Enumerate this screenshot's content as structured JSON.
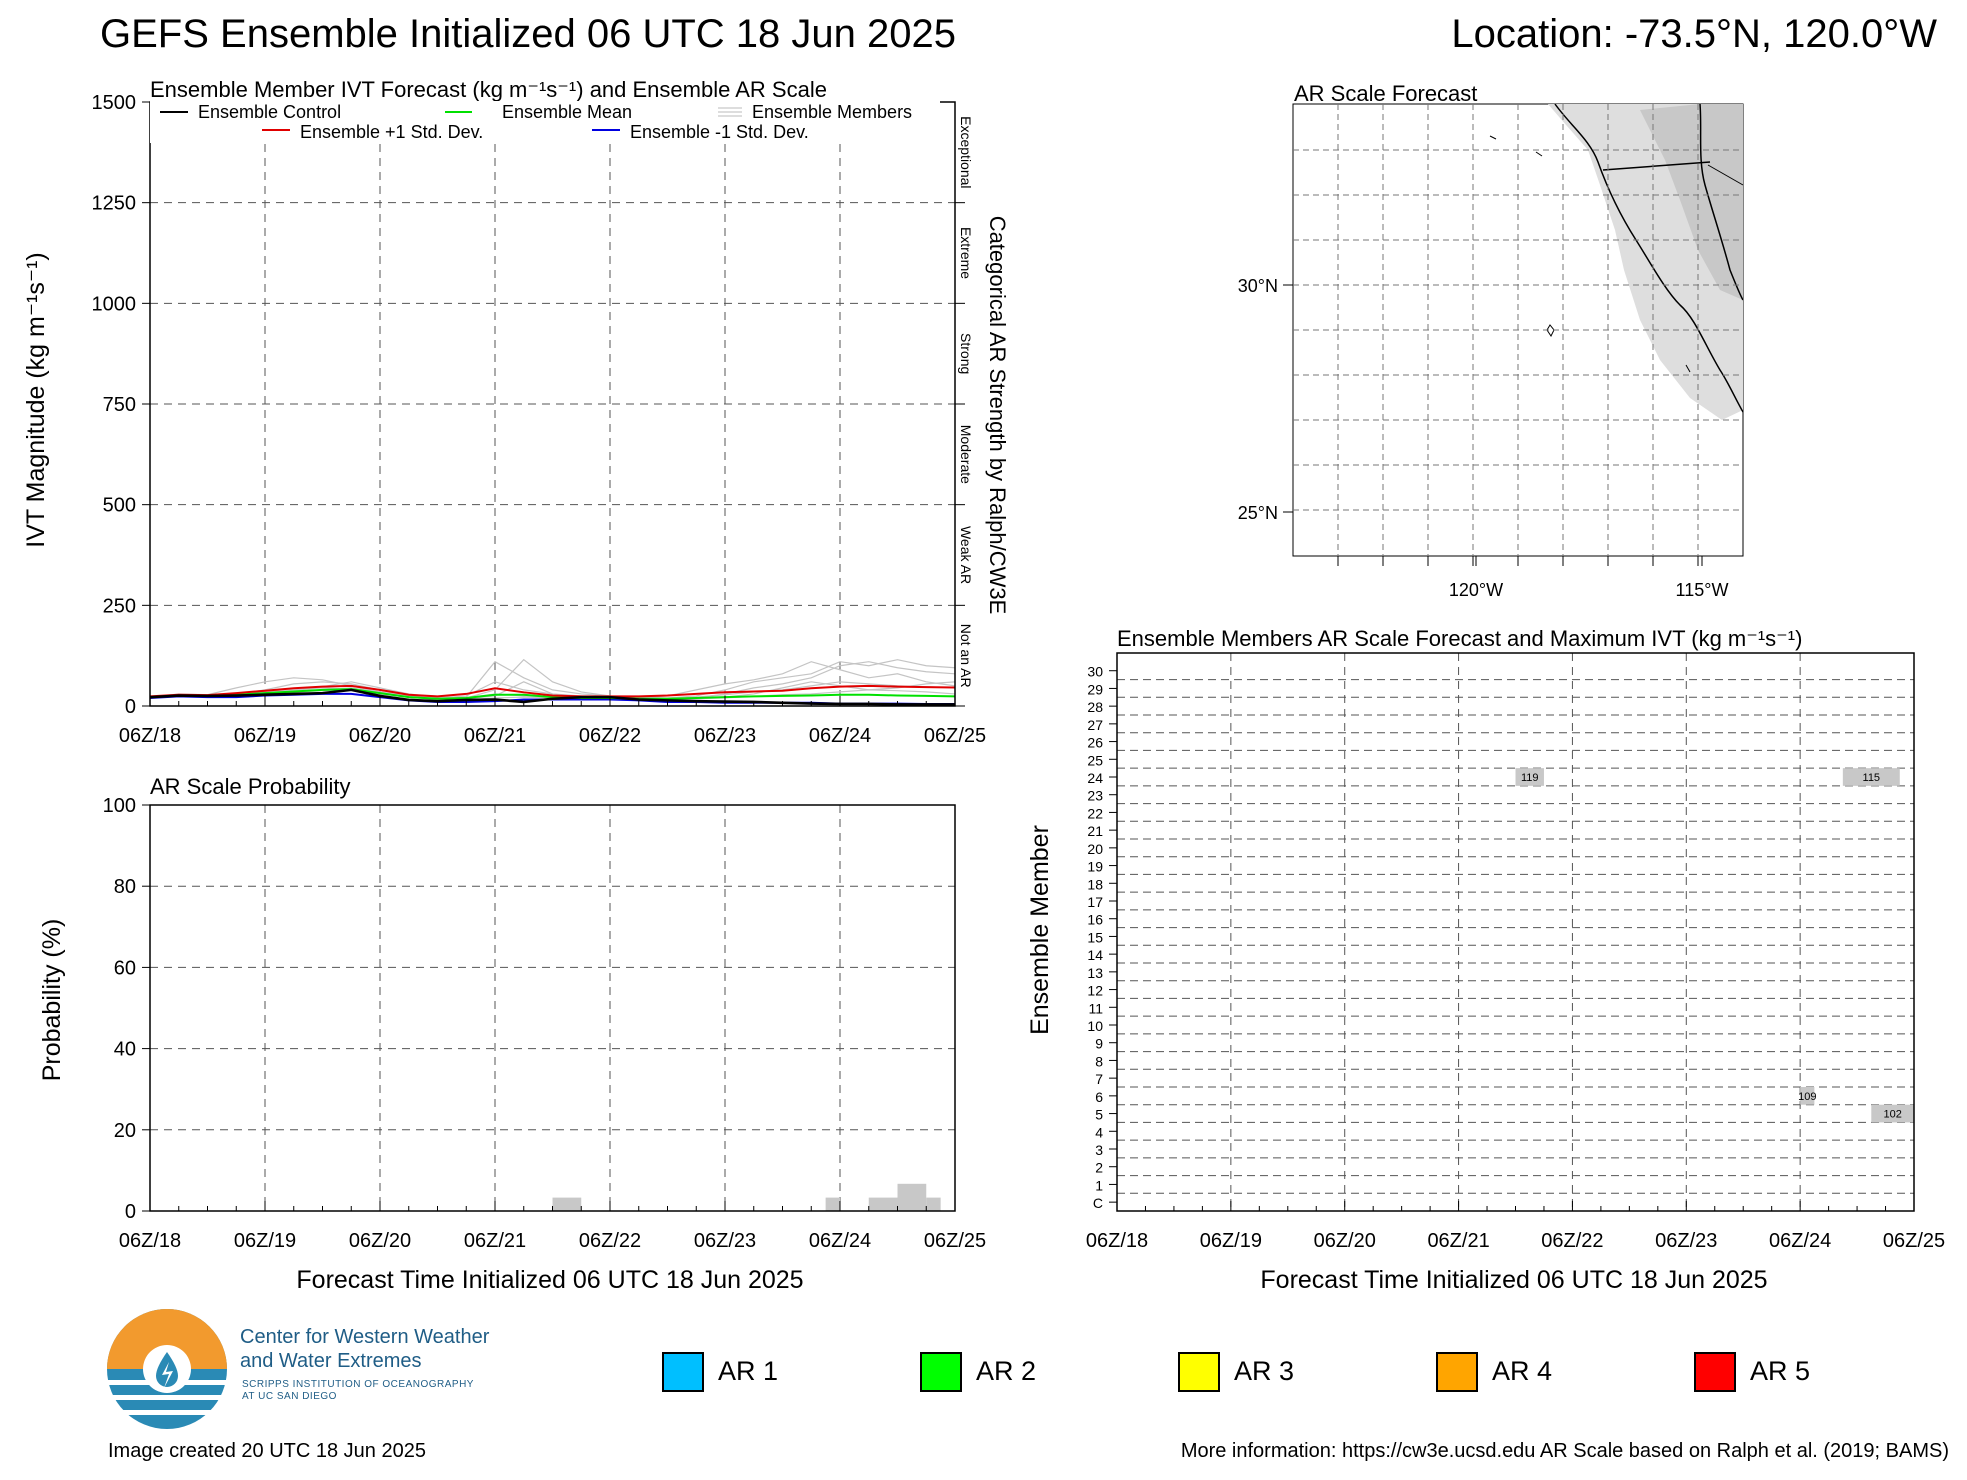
{
  "header": {
    "title": "GEFS Ensemble Initialized 06 UTC 18 Jun 2025",
    "location": "Location: -73.5°N, 120.0°W"
  },
  "time_ticks": [
    "06Z/18",
    "06Z/19",
    "06Z/20",
    "06Z/21",
    "06Z/22",
    "06Z/23",
    "06Z/24",
    "06Z/25"
  ],
  "ivt_panel": {
    "title": "Ensemble Member IVT Forecast (kg m⁻¹s⁻¹) and Ensemble AR Scale",
    "ylabel": "IVT Magnitude (kg m⁻¹s⁻¹)",
    "right_label": "Categorical AR Strength by Ralph/CW3E",
    "legend": {
      "control": "Ensemble Control",
      "mean": "Ensemble Mean",
      "members": "Ensemble Members",
      "plus_sd": "Ensemble +1 Std. Dev.",
      "minus_sd": "Ensemble -1 Std. Dev."
    },
    "categories": [
      "Exceptional",
      "Extreme",
      "Strong",
      "Moderate",
      "Weak AR",
      "Not an AR"
    ]
  },
  "prob_panel": {
    "title": "AR Scale Probability",
    "ylabel": "Probability (%)",
    "xlabel": "Forecast Time Initialized 06 UTC 18 Jun 2025"
  },
  "map_panel": {
    "title": "AR Scale Forecast",
    "lat_labels": [
      "30°N",
      "25°N"
    ],
    "lon_labels": [
      "120°W",
      "115°W"
    ]
  },
  "members_panel": {
    "title": "Ensemble Members AR Scale Forecast and Maximum IVT (kg m⁻¹s⁻¹)",
    "ylabel": "Ensemble Member",
    "xlabel": "Forecast Time Initialized 06 UTC 18 Jun 2025",
    "member_labels": [
      "C",
      "1",
      "2",
      "3",
      "4",
      "5",
      "6",
      "7",
      "8",
      "9",
      "10",
      "11",
      "12",
      "13",
      "14",
      "15",
      "16",
      "17",
      "18",
      "19",
      "20",
      "21",
      "22",
      "23",
      "24",
      "25",
      "26",
      "27",
      "28",
      "29",
      "30"
    ]
  },
  "ar_legend": [
    {
      "label": "AR 1",
      "color": "#00bfff"
    },
    {
      "label": "AR 2",
      "color": "#00ff00"
    },
    {
      "label": "AR 3",
      "color": "#ffff00"
    },
    {
      "label": "AR 4",
      "color": "#ffa500"
    },
    {
      "label": "AR 5",
      "color": "#ff0000"
    }
  ],
  "org": {
    "line1": "Center for Western Weather",
    "line2": "and Water Extremes",
    "line3": "SCRIPPS INSTITUTION OF OCEANOGRAPHY",
    "line4": "AT UC SAN DIEGO"
  },
  "footer": {
    "created": "Image created 20 UTC 18 Jun 2025",
    "info": "More information: https://cw3e.ucsd.edu AR Scale based on Ralph et al. (2019; BAMS)"
  },
  "chart_data": [
    {
      "type": "line",
      "name": "ivt",
      "x_hours": [
        0,
        6,
        12,
        18,
        24,
        30,
        36,
        42,
        48,
        54,
        60,
        66,
        72,
        78,
        84,
        90,
        96,
        102,
        108,
        114,
        120,
        126,
        132,
        138,
        144,
        150,
        156,
        162,
        168
      ],
      "ylim": [
        0,
        1500
      ],
      "yticks": [
        0,
        250,
        500,
        750,
        1000,
        1250,
        1500
      ],
      "series": [
        {
          "name": "Ensemble Control",
          "color": "#000000",
          "values": [
            22,
            26,
            25,
            26,
            28,
            30,
            32,
            40,
            25,
            15,
            12,
            15,
            16,
            10,
            18,
            22,
            22,
            16,
            14,
            12,
            11,
            10,
            8,
            6,
            5,
            5,
            4,
            4,
            4
          ]
        },
        {
          "name": "Ensemble Mean",
          "color": "#00e000",
          "values": [
            22,
            26,
            25,
            28,
            32,
            36,
            40,
            42,
            32,
            22,
            18,
            20,
            28,
            28,
            22,
            20,
            20,
            18,
            18,
            20,
            22,
            24,
            25,
            26,
            28,
            28,
            26,
            25,
            24
          ]
        },
        {
          "name": "Ensemble +1 Std. Dev.",
          "color": "#e00000",
          "values": [
            24,
            28,
            27,
            32,
            38,
            44,
            48,
            50,
            40,
            28,
            24,
            30,
            44,
            34,
            26,
            24,
            24,
            24,
            26,
            30,
            34,
            36,
            38,
            44,
            48,
            50,
            48,
            47,
            46
          ]
        },
        {
          "name": "Ensemble -1 Std. Dev.",
          "color": "#0000e0",
          "values": [
            20,
            24,
            22,
            22,
            26,
            28,
            30,
            30,
            22,
            14,
            10,
            10,
            12,
            16,
            16,
            16,
            16,
            14,
            10,
            10,
            8,
            8,
            8,
            8,
            6,
            6,
            6,
            5,
            5
          ]
        }
      ],
      "members": [
        [
          22,
          30,
          28,
          45,
          60,
          70,
          65,
          50,
          35,
          25,
          20,
          25,
          60,
          40,
          30,
          25,
          20,
          20,
          25,
          40,
          55,
          65,
          80,
          110,
          90,
          70,
          80,
          60,
          50
        ],
        [
          22,
          26,
          25,
          30,
          40,
          55,
          60,
          55,
          40,
          28,
          20,
          22,
          110,
          70,
          40,
          30,
          25,
          22,
          20,
          25,
          40,
          60,
          70,
          80,
          110,
          100,
          115,
          100,
          95
        ],
        [
          22,
          25,
          26,
          28,
          35,
          40,
          45,
          42,
          30,
          22,
          18,
          20,
          40,
          115,
          60,
          35,
          25,
          20,
          18,
          20,
          30,
          45,
          55,
          70,
          100,
          110,
          95,
          85,
          80
        ],
        [
          22,
          26,
          25,
          28,
          32,
          38,
          48,
          60,
          45,
          30,
          22,
          20,
          30,
          25,
          22,
          20,
          22,
          20,
          18,
          22,
          28,
          35,
          40,
          50,
          60,
          55,
          50,
          48,
          45
        ],
        [
          22,
          25,
          24,
          26,
          30,
          35,
          40,
          45,
          35,
          25,
          20,
          18,
          25,
          60,
          30,
          22,
          20,
          18,
          16,
          18,
          22,
          30,
          45,
          60,
          50,
          40,
          45,
          55,
          60
        ],
        [
          22,
          27,
          26,
          28,
          30,
          34,
          38,
          40,
          30,
          22,
          16,
          15,
          20,
          22,
          20,
          18,
          18,
          16,
          15,
          18,
          20,
          24,
          28,
          30,
          35,
          40,
          38,
          35,
          30
        ]
      ]
    },
    {
      "type": "bar",
      "name": "ar_probability",
      "ylim": [
        0,
        100
      ],
      "yticks": [
        0,
        20,
        40,
        60,
        80,
        100
      ],
      "bars": [
        {
          "start_hours": 84,
          "end_hours": 90,
          "value": 3.3
        },
        {
          "start_hours": 141,
          "end_hours": 144,
          "value": 3.3
        },
        {
          "start_hours": 150,
          "end_hours": 156,
          "value": 3.3
        },
        {
          "start_hours": 156,
          "end_hours": 162,
          "value": 6.7
        },
        {
          "start_hours": 162,
          "end_hours": 165,
          "value": 3.3
        }
      ]
    },
    {
      "type": "heatmap",
      "name": "members_ar_scale",
      "members": 31,
      "cells": [
        {
          "member": 24,
          "start_hours": 84,
          "end_hours": 90,
          "ivt": 119
        },
        {
          "member": 24,
          "start_hours": 153,
          "end_hours": 165,
          "ivt": 115
        },
        {
          "member": 6,
          "start_hours": 144,
          "end_hours": 147,
          "ivt": 109
        },
        {
          "member": 5,
          "start_hours": 159,
          "end_hours": 168,
          "ivt": 102
        }
      ]
    }
  ]
}
